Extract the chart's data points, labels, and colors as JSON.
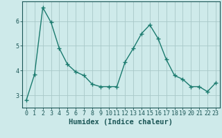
{
  "x": [
    0,
    1,
    2,
    3,
    4,
    5,
    6,
    7,
    8,
    9,
    10,
    11,
    12,
    13,
    14,
    15,
    16,
    17,
    18,
    19,
    20,
    21,
    22,
    23
  ],
  "y": [
    2.8,
    3.85,
    6.55,
    5.95,
    4.9,
    4.25,
    3.95,
    3.8,
    3.45,
    3.35,
    3.35,
    3.35,
    4.35,
    4.9,
    5.5,
    5.85,
    5.3,
    4.45,
    3.8,
    3.65,
    3.35,
    3.35,
    3.15,
    3.5
  ],
  "line_color": "#1a7a6e",
  "marker": "+",
  "marker_size": 4,
  "marker_linewidth": 1.0,
  "linewidth": 1.0,
  "bg_color": "#ceeaea",
  "grid_color": "#a8c8c8",
  "xlabel": "Humidex (Indice chaleur)",
  "xlabel_fontsize": 7.5,
  "xlim": [
    -0.5,
    23.5
  ],
  "ylim": [
    2.5,
    6.8
  ],
  "yticks": [
    3,
    4,
    5,
    6
  ],
  "xticks": [
    0,
    1,
    2,
    3,
    4,
    5,
    6,
    7,
    8,
    9,
    10,
    11,
    12,
    13,
    14,
    15,
    16,
    17,
    18,
    19,
    20,
    21,
    22,
    23
  ],
  "tick_fontsize": 6,
  "tick_color": "#1a5555",
  "axis_color": "#1a5555"
}
